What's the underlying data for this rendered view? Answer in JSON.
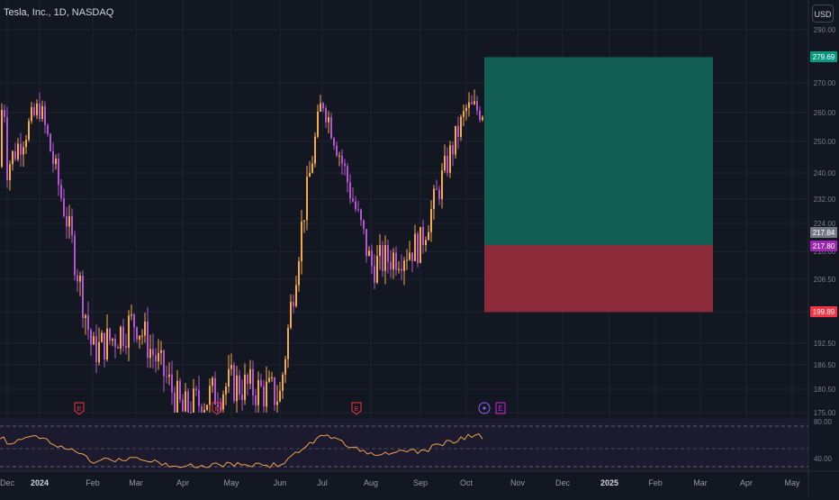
{
  "header": {
    "symbol_title": "Tesla, Inc., 1D, NASDAQ",
    "currency_label": "USD"
  },
  "price_axis": {
    "ticks": [
      "290.00",
      "270.00",
      "260.00",
      "250.00",
      "240.00",
      "232.00",
      "224.00",
      "216.00",
      "208.50",
      "200.00",
      "192.50",
      "186.50",
      "180.50",
      "175.00"
    ],
    "badges": [
      {
        "label": "279.69",
        "color": "#089981"
      },
      {
        "label": "217.84",
        "color": "#787b86"
      },
      {
        "label": "217.80",
        "color": "#9c27b0"
      },
      {
        "label": "199.89",
        "color": "#f23645"
      }
    ]
  },
  "time_axis": {
    "labels": [
      "Dec",
      "2024",
      "Feb",
      "Mar",
      "Apr",
      "May",
      "Jun",
      "Jul",
      "Aug",
      "Sep",
      "Oct",
      "Nov",
      "Dec",
      "2025",
      "Feb",
      "Mar",
      "Apr",
      "May"
    ]
  },
  "rsi": {
    "ticks": [
      "80.00",
      "40.00"
    ],
    "line_color": "#f0a04b"
  },
  "position": {
    "entry": 217.8,
    "target": 279.69,
    "stop": 199.89,
    "profit_color": "#125e55",
    "loss_color": "#8b2a38"
  },
  "event_markers": [
    {
      "type": "earnings",
      "label": "E",
      "color": "#f23645"
    },
    {
      "type": "earnings",
      "label": "E",
      "color": "#f23645"
    },
    {
      "type": "earnings",
      "label": "E",
      "color": "#f23645"
    },
    {
      "type": "split",
      "label": "✦",
      "color": "#9b5cf6"
    },
    {
      "type": "earnings",
      "label": "E",
      "color": "#d020d9"
    }
  ],
  "chart_data": {
    "type": "line",
    "title": "Tesla, Inc., 1D, NASDAQ",
    "xlabel": "",
    "ylabel": "",
    "series": [
      {
        "x": [
          "Dec",
          "Jan",
          "Feb",
          "Mar",
          "Apr",
          "May",
          "Jun",
          "Jul",
          "Aug",
          "Sep",
          "Oct"
        ],
        "values": [
          242,
          262,
          190,
          198,
          175,
          182,
          179,
          265,
          212,
          218,
          261
        ]
      }
    ],
    "ylim": [
      175,
      290
    ],
    "scale": "log"
  }
}
